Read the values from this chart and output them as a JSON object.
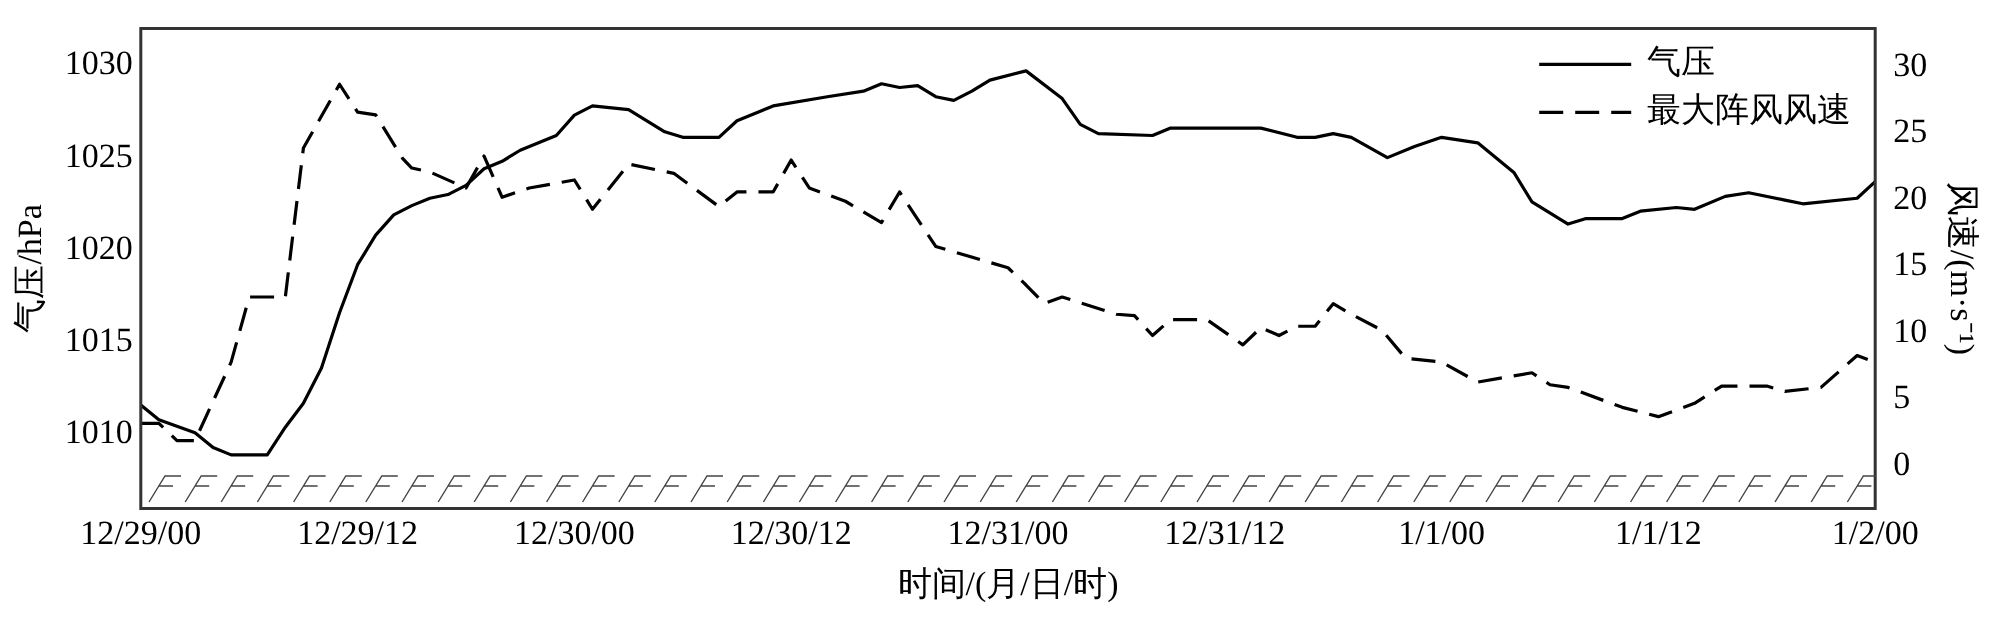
{
  "chart_data": {
    "type": "line",
    "xlabel": "时间/(月/日/时)",
    "ylabel": "气压/hPa",
    "y2label": "风速/(m·s⁻¹)",
    "xlim": [
      "2000-12-29T00:00",
      "2001-01-02T00:00"
    ],
    "xticks": [
      {
        "value": "2000-12-29T00:00",
        "label": "12/29/00"
      },
      {
        "value": "2000-12-29T12:00",
        "label": "12/29/12"
      },
      {
        "value": "2000-12-30T00:00",
        "label": "12/30/00"
      },
      {
        "value": "2000-12-30T12:00",
        "label": "12/30/12"
      },
      {
        "value": "2000-12-31T00:00",
        "label": "12/31/00"
      },
      {
        "value": "2000-12-31T12:00",
        "label": "12/31/12"
      },
      {
        "value": "2001-01-01T00:00",
        "label": "1/1/00"
      },
      {
        "value": "2001-01-01T12:00",
        "label": "1/1/12"
      },
      {
        "value": "2001-01-02T00:00",
        "label": "1/2/00"
      }
    ],
    "ylim": [
      1006,
      1032
    ],
    "yticks": [
      1010,
      1015,
      1020,
      1025,
      1030
    ],
    "y2lim": [
      -3.2,
      32.9
    ],
    "y2ticks": [
      0,
      5,
      10,
      15,
      20,
      25,
      30
    ],
    "grid": false,
    "legend": "top right",
    "marker": "none",
    "series": [
      {
        "name": "气压",
        "color": "#000000",
        "line_style": "solid",
        "x": [
          "2000-12-29T00:00",
          "2000-12-29T01:00",
          "2000-12-29T03:00",
          "2000-12-29T04:00",
          "2000-12-29T05:00",
          "2000-12-29T07:00",
          "2000-12-29T08:00",
          "2000-12-29T09:00",
          "2000-12-29T10:00",
          "2000-12-29T11:00",
          "2000-12-29T12:00",
          "2000-12-29T13:00",
          "2000-12-29T14:00",
          "2000-12-29T15:00",
          "2000-12-29T16:00",
          "2000-12-29T17:00",
          "2000-12-29T18:00",
          "2000-12-29T19:00",
          "2000-12-29T20:00",
          "2000-12-29T21:00",
          "2000-12-29T23:00",
          "2000-12-30T00:00",
          "2000-12-30T01:00",
          "2000-12-30T03:00",
          "2000-12-30T05:00",
          "2000-12-30T06:00",
          "2000-12-30T08:00",
          "2000-12-30T09:00",
          "2000-12-30T11:00",
          "2000-12-30T14:00",
          "2000-12-30T16:00",
          "2000-12-30T17:00",
          "2000-12-30T18:00",
          "2000-12-30T19:00",
          "2000-12-30T20:00",
          "2000-12-30T21:00",
          "2000-12-30T22:00",
          "2000-12-30T23:00",
          "2000-12-31T01:00",
          "2000-12-31T03:00",
          "2000-12-31T04:00",
          "2000-12-31T05:00",
          "2000-12-31T08:00",
          "2000-12-31T09:00",
          "2000-12-31T12:00",
          "2000-12-31T14:00",
          "2000-12-31T16:00",
          "2000-12-31T17:00",
          "2000-12-31T18:00",
          "2000-12-31T19:00",
          "2000-12-31T21:00",
          "2000-12-31T22:30",
          "2001-01-01T00:00",
          "2001-01-01T02:00",
          "2001-01-01T04:00",
          "2001-01-01T05:00",
          "2001-01-01T07:00",
          "2001-01-01T08:00",
          "2001-01-01T10:00",
          "2001-01-01T11:00",
          "2001-01-01T13:00",
          "2001-01-01T14:00",
          "2001-01-01T15:42",
          "2001-01-01T17:00",
          "2001-01-01T19:00",
          "2001-01-01T20:00",
          "2001-01-01T23:00",
          "2001-01-02T00:00"
        ],
        "values": [
          1011.6,
          1010.8,
          1010.1,
          1009.3,
          1008.9,
          1008.9,
          1010.4,
          1011.7,
          1013.6,
          1016.6,
          1019.2,
          1020.8,
          1021.9,
          1022.4,
          1022.8,
          1023.0,
          1023.5,
          1024.4,
          1024.8,
          1025.4,
          1026.2,
          1027.3,
          1027.8,
          1027.6,
          1026.4,
          1026.1,
          1026.1,
          1027.0,
          1027.8,
          1028.3,
          1028.6,
          1029.0,
          1028.8,
          1028.9,
          1028.3,
          1028.1,
          1028.6,
          1029.2,
          1029.7,
          1028.2,
          1026.8,
          1026.3,
          1026.2,
          1026.6,
          1026.6,
          1026.6,
          1026.1,
          1026.1,
          1026.3,
          1026.1,
          1025.0,
          1025.6,
          1026.1,
          1025.8,
          1024.2,
          1022.6,
          1021.4,
          1021.7,
          1021.7,
          1022.1,
          1022.3,
          1022.2,
          1022.9,
          1023.1,
          1022.7,
          1022.5,
          1022.8,
          1023.7
        ]
      },
      {
        "name": "最大阵风风速",
        "color": "#000000",
        "line_style": "dashed",
        "axis": "y2",
        "x": [
          "2000-12-29T00:00",
          "2000-12-29T01:00",
          "2000-12-29T02:00",
          "2000-12-29T03:00",
          "2000-12-29T05:00",
          "2000-12-29T06:00",
          "2000-12-29T08:00",
          "2000-12-29T09:00",
          "2000-12-29T11:00",
          "2000-12-29T12:00",
          "2000-12-29T13:00",
          "2000-12-29T14:30",
          "2000-12-29T15:00",
          "2000-12-29T16:00",
          "2000-12-29T18:00",
          "2000-12-29T19:00",
          "2000-12-29T20:00",
          "2000-12-29T21:30",
          "2000-12-30T00:00",
          "2000-12-30T01:00",
          "2000-12-30T03:00",
          "2000-12-30T05:30",
          "2000-12-30T08:00",
          "2000-12-30T09:00",
          "2000-12-30T11:00",
          "2000-12-30T12:00",
          "2000-12-30T13:00",
          "2000-12-30T15:00",
          "2000-12-30T17:00",
          "2000-12-30T18:00",
          "2000-12-30T20:00",
          "2000-12-30T22:30",
          "2000-12-31T00:00",
          "2000-12-31T01:00",
          "2000-12-31T02:00",
          "2000-12-31T03:00",
          "2000-12-31T06:00",
          "2000-12-31T07:00",
          "2000-12-31T08:00",
          "2000-12-31T09:00",
          "2000-12-31T11:00",
          "2000-12-31T13:00",
          "2000-12-31T14:00",
          "2000-12-31T15:00",
          "2000-12-31T16:00",
          "2000-12-31T17:00",
          "2000-12-31T18:00",
          "2000-12-31T19:00",
          "2000-12-31T20:42",
          "2000-12-31T22:00",
          "2001-01-01T00:00",
          "2001-01-01T02:00",
          "2001-01-01T05:00",
          "2001-01-01T06:00",
          "2001-01-01T07:00",
          "2001-01-01T10:00",
          "2001-01-01T12:00",
          "2001-01-01T14:00",
          "2001-01-01T15:30",
          "2001-01-01T18:00",
          "2001-01-01T19:00",
          "2001-01-01T21:00",
          "2001-01-01T23:00",
          "2001-01-02T00:00"
        ],
        "values": [
          3.2,
          3.2,
          1.9,
          1.9,
          7.8,
          12.7,
          12.7,
          23.9,
          28.7,
          26.6,
          26.4,
          23.1,
          22.4,
          22.1,
          20.9,
          23.3,
          20.2,
          20.9,
          21.5,
          19.3,
          22.7,
          22.0,
          19.5,
          20.6,
          20.6,
          23.0,
          20.9,
          19.9,
          18.3,
          20.6,
          16.5,
          15.5,
          14.9,
          13.6,
          12.2,
          12.7,
          11.4,
          11.3,
          9.8,
          11.0,
          11.0,
          9.1,
          10.4,
          9.8,
          10.5,
          10.5,
          12.2,
          11.4,
          10.2,
          8.1,
          7.8,
          6.3,
          7.0,
          6.1,
          5.9,
          4.4,
          3.7,
          4.7,
          6.0,
          6.0,
          5.6,
          5.9,
          8.3,
          7.8
        ]
      }
    ]
  }
}
